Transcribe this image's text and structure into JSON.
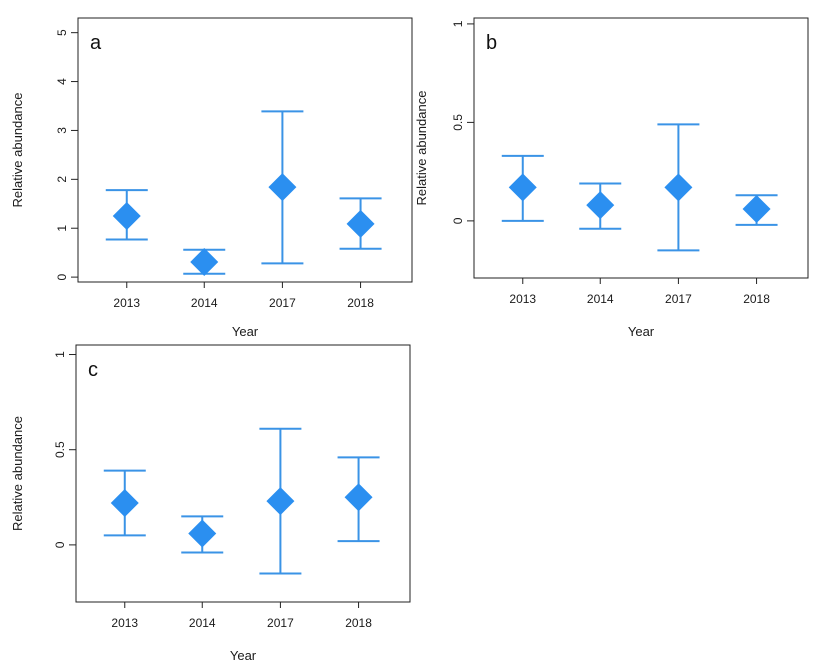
{
  "chart_data": [
    {
      "type": "scatter",
      "panel_label": "a",
      "categories": [
        "2013",
        "2014",
        "2017",
        "2018"
      ],
      "series": [
        {
          "values": [
            1.25,
            0.31,
            1.84,
            1.09
          ],
          "lower": [
            0.77,
            0.07,
            0.28,
            0.58
          ],
          "upper": [
            1.78,
            0.56,
            3.39,
            1.61
          ]
        }
      ],
      "ylim": [
        -0.1,
        5.3
      ],
      "yticks": [
        0,
        1,
        2,
        3,
        4,
        5
      ],
      "ytick_labels": [
        "0",
        "1",
        "2",
        "3",
        "4",
        "5"
      ],
      "xlabel": "Year",
      "ylabel": "Relative abundance",
      "grid": false,
      "marker_color": "#2b8ff0",
      "errorbar_color": "#3a93e6"
    },
    {
      "type": "scatter",
      "panel_label": "b",
      "categories": [
        "2013",
        "2014",
        "2017",
        "2018"
      ],
      "series": [
        {
          "values": [
            0.17,
            0.08,
            0.17,
            0.06
          ],
          "lower": [
            0.0,
            -0.04,
            -0.15,
            -0.02
          ],
          "upper": [
            0.33,
            0.19,
            0.49,
            0.13
          ]
        }
      ],
      "ylim": [
        -0.29,
        1.03
      ],
      "yticks": [
        0,
        0.5,
        1
      ],
      "ytick_labels": [
        "0",
        "0.5",
        "1"
      ],
      "xlabel": "Year",
      "ylabel": "Relative abundance",
      "grid": false,
      "marker_color": "#2b8ff0",
      "errorbar_color": "#3a93e6"
    },
    {
      "type": "scatter",
      "panel_label": "c",
      "categories": [
        "2013",
        "2014",
        "2017",
        "2018"
      ],
      "series": [
        {
          "values": [
            0.22,
            0.06,
            0.23,
            0.25
          ],
          "lower": [
            0.05,
            -0.04,
            -0.15,
            0.02
          ],
          "upper": [
            0.39,
            0.15,
            0.61,
            0.46
          ]
        }
      ],
      "ylim": [
        -0.3,
        1.05
      ],
      "yticks": [
        0,
        0.5,
        1
      ],
      "ytick_labels": [
        "0",
        "0.5",
        "1"
      ],
      "xlabel": "Year",
      "ylabel": "Relative abundance",
      "grid": false,
      "marker_color": "#2b8ff0",
      "errorbar_color": "#3a93e6"
    }
  ]
}
